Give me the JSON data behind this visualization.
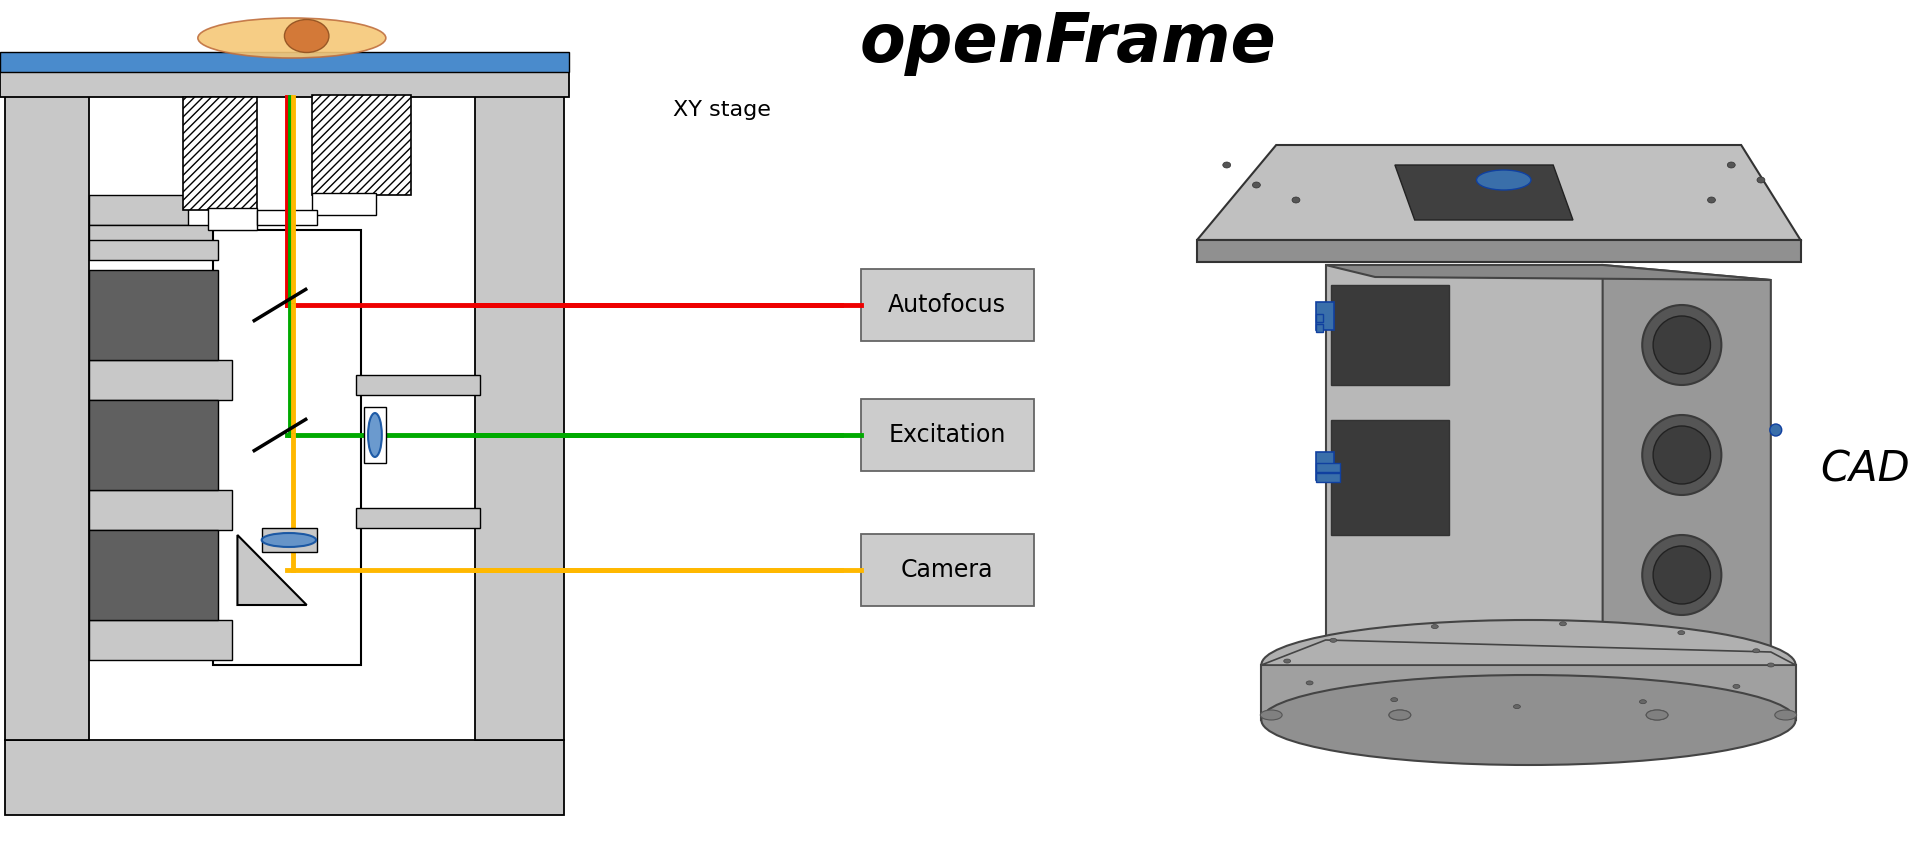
{
  "title": "openFrame",
  "cad_label": "CAD",
  "xy_stage_label": "XY stage",
  "labels": [
    "Autofocus",
    "Excitation",
    "Camera"
  ],
  "box_color": "#cccccc",
  "box_edge": "#666666",
  "dark_gray": "#606060",
  "light_gray": "#c8c8c8",
  "lighter_gray": "#e0e0e0",
  "mid_gray": "#a0a0a0",
  "white": "#ffffff",
  "cell_color": "#f5c878",
  "cell_nucleus": "#d07030",
  "blue_lens": "#5b8fc9",
  "blue_stage": "#4a8bcc",
  "red": "#ee0000",
  "green": "#00aa00",
  "yellow": "#FFB800",
  "background": "#ffffff",
  "cad_body_light": "#aaaaaa",
  "cad_body_mid": "#909090",
  "cad_body_dark": "#707070",
  "cad_plate_top": "#b0b0b0",
  "cad_blue": "#3a6faa"
}
